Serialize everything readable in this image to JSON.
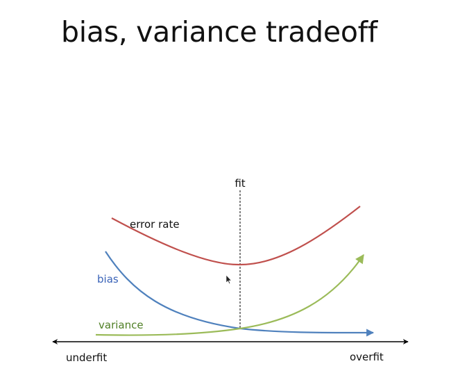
{
  "slide": {
    "title": "bias, variance tradeoff"
  },
  "diagram": {
    "labels": {
      "fit": "fit",
      "error_rate": "error rate",
      "bias": "bias",
      "variance": "variance",
      "underfit": "underfit",
      "overfit": "overfit"
    },
    "colors": {
      "error_rate": "#c0504d",
      "bias": "#4f81bd",
      "variance": "#9bbb59",
      "axis": "#000000",
      "label_bias": "#3a63b8",
      "label_variance": "#4f7f25"
    }
  }
}
